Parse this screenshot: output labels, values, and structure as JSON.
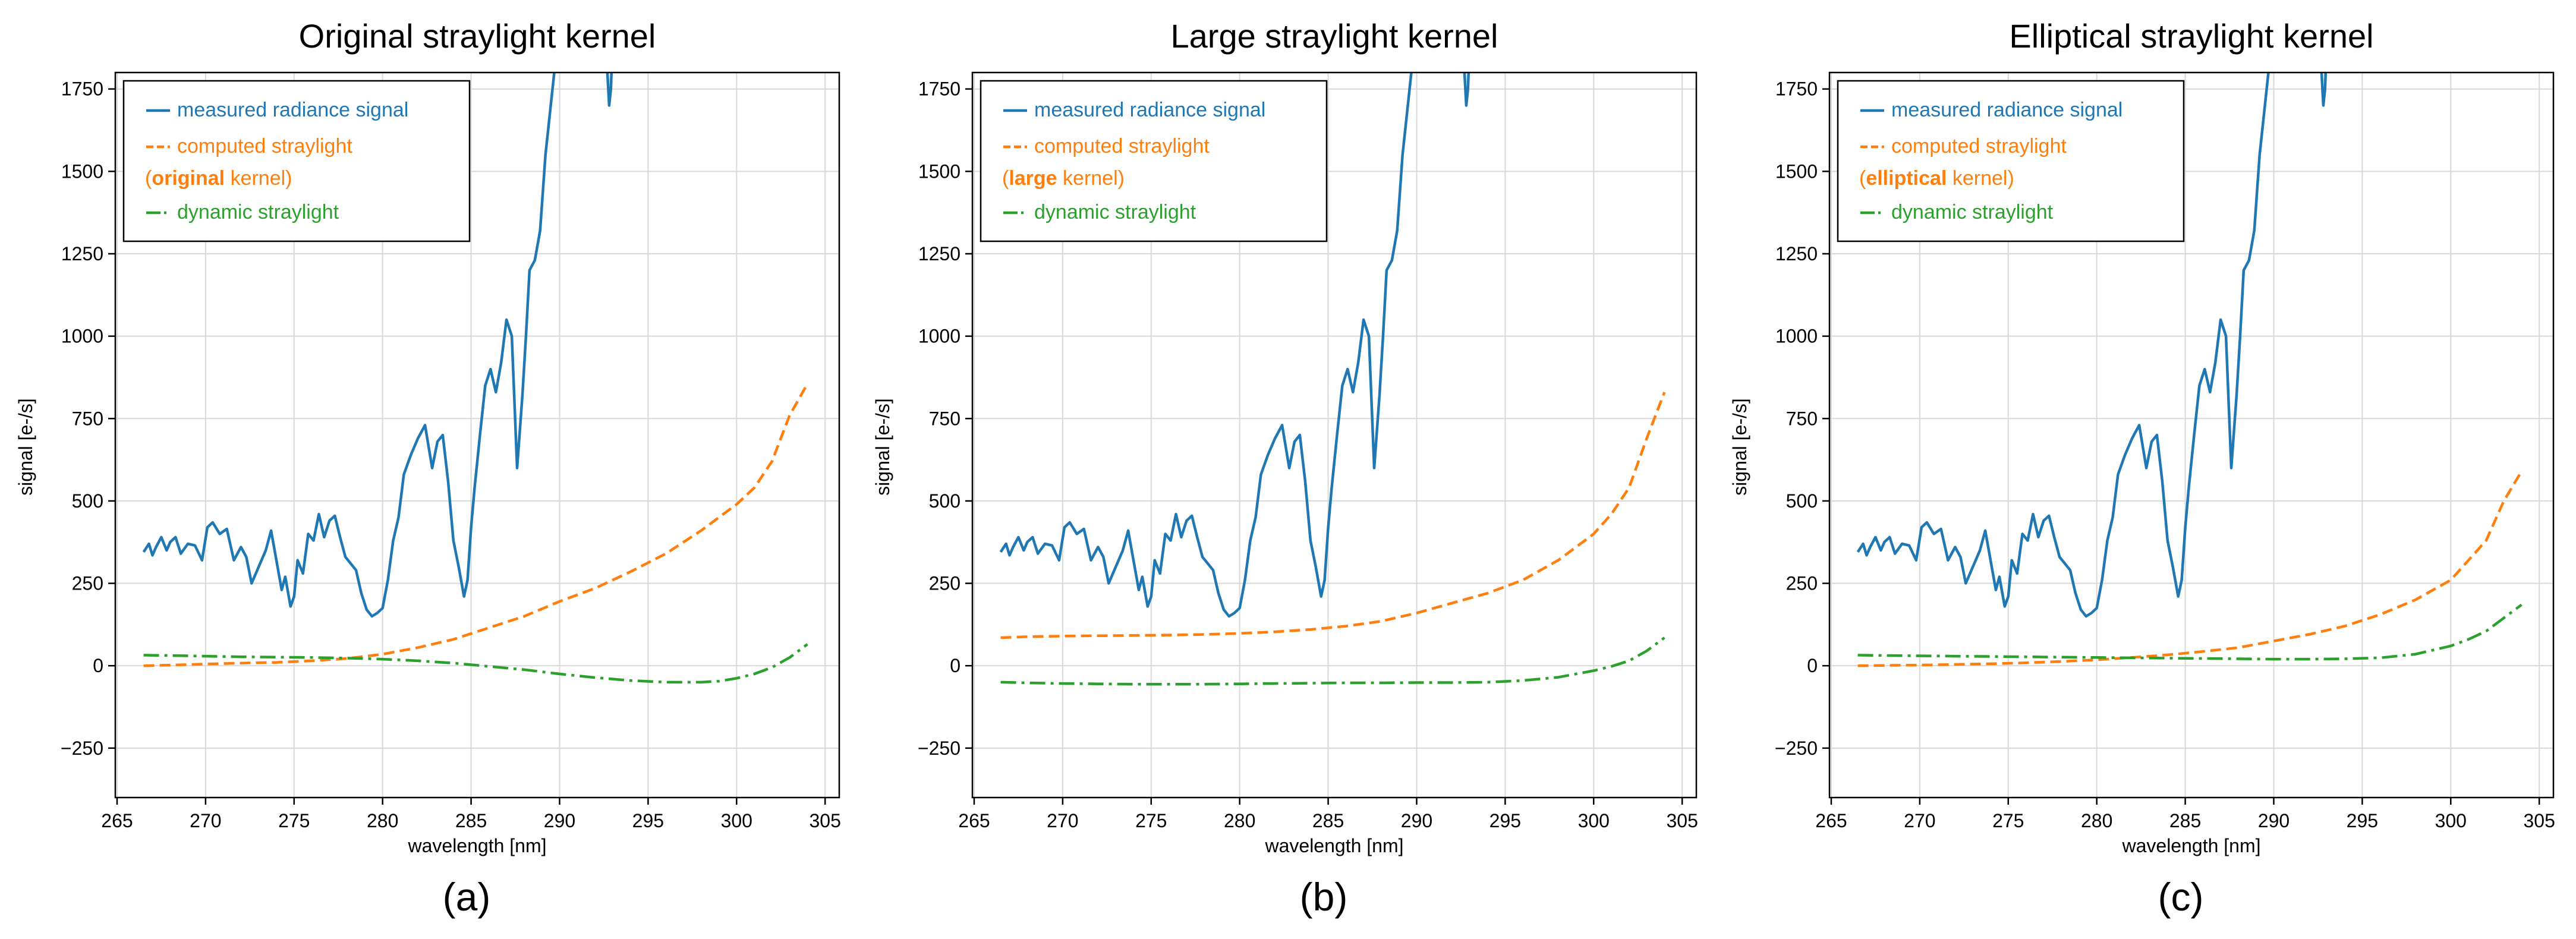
{
  "chart_data": [
    {
      "type": "line",
      "title": "Original straylight kernel",
      "caption": "(a)",
      "xlabel": "wavelength [nm]",
      "ylabel": "signal [e-/s]",
      "xlim": [
        264.9,
        305.8
      ],
      "ylim": [
        -400,
        1800
      ],
      "xticks": [
        265,
        270,
        275,
        280,
        285,
        290,
        295,
        300,
        305
      ],
      "yticks": [
        -250,
        0,
        250,
        500,
        750,
        1000,
        1250,
        1500,
        1750
      ],
      "grid": true,
      "legend_position": "top-left",
      "legend": [
        {
          "series": 0,
          "text": "measured radiance signal"
        },
        {
          "series": 1,
          "text": "computed straylight",
          "line2_pre": "(",
          "line2_bold": "original",
          "line2_post": " kernel)"
        },
        {
          "series": 2,
          "text": "dynamic straylight"
        }
      ],
      "series": [
        {
          "name": "measured radiance signal",
          "color": "#1f77b4",
          "style": "solid",
          "x": [
            266.5,
            266.8,
            267.0,
            267.2,
            267.5,
            267.8,
            268.0,
            268.3,
            268.6,
            269.0,
            269.4,
            269.8,
            270.1,
            270.4,
            270.8,
            271.2,
            271.6,
            272.0,
            272.3,
            272.6,
            273.0,
            273.4,
            273.7,
            274.0,
            274.3,
            274.5,
            274.8,
            275.0,
            275.2,
            275.5,
            275.8,
            276.1,
            276.4,
            276.7,
            277.0,
            277.3,
            277.6,
            277.9,
            278.2,
            278.5,
            278.8,
            279.1,
            279.4,
            279.7,
            280.0,
            280.3,
            280.6,
            280.9,
            281.2,
            281.6,
            282.0,
            282.4,
            282.8,
            283.1,
            283.4,
            283.7,
            284.0,
            284.3,
            284.6,
            284.8,
            285.0,
            285.2,
            285.5,
            285.8,
            286.1,
            286.4,
            286.7,
            287.0,
            287.3,
            287.6,
            287.9,
            288.1,
            288.3,
            288.6,
            288.9,
            289.2,
            289.5,
            289.7,
            289.9,
            290.0,
            292.6,
            292.7,
            292.8,
            292.9,
            293.0
          ],
          "y": [
            345,
            370,
            335,
            360,
            390,
            350,
            375,
            390,
            340,
            370,
            365,
            320,
            420,
            435,
            400,
            415,
            320,
            360,
            330,
            250,
            300,
            350,
            410,
            320,
            230,
            270,
            180,
            210,
            320,
            280,
            400,
            380,
            460,
            390,
            440,
            455,
            390,
            330,
            310,
            290,
            220,
            170,
            150,
            160,
            175,
            260,
            380,
            450,
            580,
            640,
            690,
            730,
            600,
            680,
            700,
            560,
            380,
            300,
            210,
            260,
            420,
            540,
            700,
            850,
            900,
            830,
            920,
            1050,
            1000,
            600,
            820,
            1000,
            1200,
            1230,
            1320,
            1550,
            1700,
            1800,
            1850,
            1900,
            1900,
            1800,
            1700,
            1750,
            1900
          ]
        },
        {
          "name": "computed straylight",
          "color": "#ff7f0e",
          "style": "dashed",
          "x": [
            266.5,
            268,
            270,
            272,
            274,
            276,
            278,
            280,
            282,
            284,
            286,
            288,
            290,
            292,
            294,
            296,
            298,
            300,
            301,
            302,
            303,
            304
          ],
          "y": [
            0,
            2,
            5,
            8,
            10,
            15,
            22,
            35,
            55,
            80,
            115,
            150,
            195,
            235,
            285,
            340,
            410,
            490,
            540,
            620,
            760,
            855
          ]
        },
        {
          "name": "dynamic straylight",
          "color": "#2ca02c",
          "style": "dashdot",
          "x": [
            266.5,
            268,
            270,
            272,
            274,
            276,
            278,
            280,
            282,
            284,
            286,
            288,
            290,
            292,
            294,
            296,
            298,
            299,
            300,
            301,
            302,
            303,
            304
          ],
          "y": [
            32,
            31,
            29,
            27,
            26,
            25,
            23,
            20,
            15,
            8,
            -2,
            -12,
            -25,
            -36,
            -45,
            -50,
            -50,
            -47,
            -38,
            -25,
            -5,
            25,
            65
          ]
        }
      ]
    },
    {
      "type": "line",
      "title": "Large straylight kernel",
      "caption": "(b)",
      "xlabel": "wavelength [nm]",
      "ylabel": "signal [e-/s]",
      "xlim": [
        264.9,
        305.8
      ],
      "ylim": [
        -400,
        1800
      ],
      "xticks": [
        265,
        270,
        275,
        280,
        285,
        290,
        295,
        300,
        305
      ],
      "yticks": [
        -250,
        0,
        250,
        500,
        750,
        1000,
        1250,
        1500,
        1750
      ],
      "grid": true,
      "legend_position": "top-left",
      "legend": [
        {
          "series": 0,
          "text": "measured radiance signal"
        },
        {
          "series": 1,
          "text": "computed straylight",
          "line2_pre": "(",
          "line2_bold": "large",
          "line2_post": " kernel)"
        },
        {
          "series": 2,
          "text": "dynamic straylight"
        }
      ],
      "series": [
        {
          "name": "measured radiance signal",
          "color": "#1f77b4",
          "style": "solid",
          "x": [
            266.5,
            266.8,
            267.0,
            267.2,
            267.5,
            267.8,
            268.0,
            268.3,
            268.6,
            269.0,
            269.4,
            269.8,
            270.1,
            270.4,
            270.8,
            271.2,
            271.6,
            272.0,
            272.3,
            272.6,
            273.0,
            273.4,
            273.7,
            274.0,
            274.3,
            274.5,
            274.8,
            275.0,
            275.2,
            275.5,
            275.8,
            276.1,
            276.4,
            276.7,
            277.0,
            277.3,
            277.6,
            277.9,
            278.2,
            278.5,
            278.8,
            279.1,
            279.4,
            279.7,
            280.0,
            280.3,
            280.6,
            280.9,
            281.2,
            281.6,
            282.0,
            282.4,
            282.8,
            283.1,
            283.4,
            283.7,
            284.0,
            284.3,
            284.6,
            284.8,
            285.0,
            285.2,
            285.5,
            285.8,
            286.1,
            286.4,
            286.7,
            287.0,
            287.3,
            287.6,
            287.9,
            288.1,
            288.3,
            288.6,
            288.9,
            289.2,
            289.5,
            289.7,
            289.9,
            290.0,
            292.6,
            292.7,
            292.8,
            292.9,
            293.0
          ],
          "y": [
            345,
            370,
            335,
            360,
            390,
            350,
            375,
            390,
            340,
            370,
            365,
            320,
            420,
            435,
            400,
            415,
            320,
            360,
            330,
            250,
            300,
            350,
            410,
            320,
            230,
            270,
            180,
            210,
            320,
            280,
            400,
            380,
            460,
            390,
            440,
            455,
            390,
            330,
            310,
            290,
            220,
            170,
            150,
            160,
            175,
            260,
            380,
            450,
            580,
            640,
            690,
            730,
            600,
            680,
            700,
            560,
            380,
            300,
            210,
            260,
            420,
            540,
            700,
            850,
            900,
            830,
            920,
            1050,
            1000,
            600,
            820,
            1000,
            1200,
            1230,
            1320,
            1550,
            1700,
            1800,
            1850,
            1900,
            1900,
            1800,
            1700,
            1750,
            1900
          ]
        },
        {
          "name": "computed straylight",
          "color": "#ff7f0e",
          "style": "dashed",
          "x": [
            266.5,
            268,
            270,
            272,
            274,
            276,
            278,
            280,
            282,
            284,
            286,
            288,
            290,
            292,
            294,
            296,
            298,
            300,
            301,
            302,
            303,
            304
          ],
          "y": [
            85,
            88,
            90,
            91,
            92,
            93,
            95,
            98,
            103,
            110,
            120,
            135,
            160,
            190,
            220,
            260,
            320,
            400,
            460,
            540,
            690,
            830
          ]
        },
        {
          "name": "dynamic straylight",
          "color": "#2ca02c",
          "style": "dashdot",
          "x": [
            266.5,
            268,
            270,
            272,
            274,
            276,
            278,
            280,
            282,
            284,
            286,
            288,
            290,
            292,
            294,
            296,
            298,
            300,
            301,
            302,
            303,
            304
          ],
          "y": [
            -50,
            -52,
            -54,
            -55,
            -56,
            -56,
            -56,
            -55,
            -54,
            -53,
            -52,
            -52,
            -51,
            -51,
            -50,
            -45,
            -35,
            -15,
            -2,
            15,
            45,
            85
          ]
        }
      ]
    },
    {
      "type": "line",
      "title": "Elliptical straylight kernel",
      "caption": "(c)",
      "xlabel": "wavelength [nm]",
      "ylabel": "signal [e-/s]",
      "xlim": [
        264.9,
        305.8
      ],
      "ylim": [
        -400,
        1800
      ],
      "xticks": [
        265,
        270,
        275,
        280,
        285,
        290,
        295,
        300,
        305
      ],
      "yticks": [
        -250,
        0,
        250,
        500,
        750,
        1000,
        1250,
        1500,
        1750
      ],
      "grid": true,
      "legend_position": "top-left",
      "legend": [
        {
          "series": 0,
          "text": "measured radiance signal"
        },
        {
          "series": 1,
          "text": "computed straylight",
          "line2_pre": "(",
          "line2_bold": "elliptical",
          "line2_post": " kernel)"
        },
        {
          "series": 2,
          "text": "dynamic straylight"
        }
      ],
      "series": [
        {
          "name": "measured radiance signal",
          "color": "#1f77b4",
          "style": "solid",
          "x": [
            266.5,
            266.8,
            267.0,
            267.2,
            267.5,
            267.8,
            268.0,
            268.3,
            268.6,
            269.0,
            269.4,
            269.8,
            270.1,
            270.4,
            270.8,
            271.2,
            271.6,
            272.0,
            272.3,
            272.6,
            273.0,
            273.4,
            273.7,
            274.0,
            274.3,
            274.5,
            274.8,
            275.0,
            275.2,
            275.5,
            275.8,
            276.1,
            276.4,
            276.7,
            277.0,
            277.3,
            277.6,
            277.9,
            278.2,
            278.5,
            278.8,
            279.1,
            279.4,
            279.7,
            280.0,
            280.3,
            280.6,
            280.9,
            281.2,
            281.6,
            282.0,
            282.4,
            282.8,
            283.1,
            283.4,
            283.7,
            284.0,
            284.3,
            284.6,
            284.8,
            285.0,
            285.2,
            285.5,
            285.8,
            286.1,
            286.4,
            286.7,
            287.0,
            287.3,
            287.6,
            287.9,
            288.1,
            288.3,
            288.6,
            288.9,
            289.2,
            289.5,
            289.7,
            289.9,
            290.0,
            292.6,
            292.7,
            292.8,
            292.9,
            293.0
          ],
          "y": [
            345,
            370,
            335,
            360,
            390,
            350,
            375,
            390,
            340,
            370,
            365,
            320,
            420,
            435,
            400,
            415,
            320,
            360,
            330,
            250,
            300,
            350,
            410,
            320,
            230,
            270,
            180,
            210,
            320,
            280,
            400,
            380,
            460,
            390,
            440,
            455,
            390,
            330,
            310,
            290,
            220,
            170,
            150,
            160,
            175,
            260,
            380,
            450,
            580,
            640,
            690,
            730,
            600,
            680,
            700,
            560,
            380,
            300,
            210,
            260,
            420,
            540,
            700,
            850,
            900,
            830,
            920,
            1050,
            1000,
            600,
            820,
            1000,
            1200,
            1230,
            1320,
            1550,
            1700,
            1800,
            1850,
            1900,
            1900,
            1800,
            1700,
            1750,
            1900
          ]
        },
        {
          "name": "computed straylight",
          "color": "#ff7f0e",
          "style": "dashed",
          "x": [
            266.5,
            268,
            270,
            272,
            274,
            276,
            278,
            280,
            282,
            284,
            286,
            288,
            290,
            292,
            294,
            296,
            298,
            300,
            301,
            302,
            303,
            304
          ],
          "y": [
            0,
            1,
            2,
            4,
            6,
            9,
            13,
            18,
            25,
            33,
            43,
            55,
            75,
            95,
            120,
            155,
            200,
            260,
            320,
            380,
            500,
            590
          ]
        },
        {
          "name": "dynamic straylight",
          "color": "#2ca02c",
          "style": "dashdot",
          "x": [
            266.5,
            268,
            270,
            272,
            274,
            276,
            278,
            280,
            282,
            284,
            286,
            288,
            290,
            292,
            294,
            296,
            298,
            300,
            301,
            302,
            303,
            304
          ],
          "y": [
            32,
            31,
            30,
            29,
            28,
            27,
            26,
            25,
            24,
            23,
            22,
            21,
            20,
            20,
            21,
            24,
            35,
            60,
            80,
            105,
            145,
            185
          ]
        }
      ]
    }
  ]
}
